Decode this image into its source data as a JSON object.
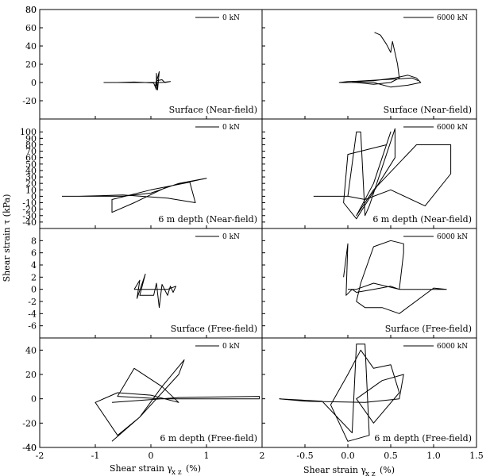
{
  "figure": {
    "ylabel": "Shear strain τ (kPa)",
    "xlabel_left": "Shear strain γ",
    "xlabel_left_sub": "x z",
    "xlabel_left_unit": "(%)",
    "xlabel_right": "Shear strain γ",
    "xlabel_right_sub": "x z",
    "xlabel_right_unit": "(%)"
  },
  "chart_data": [
    {
      "type": "line",
      "panel": "row1-left",
      "legend": "0 kN",
      "annotation": "Surface (Near-field)",
      "xlim": [
        -2,
        2
      ],
      "ylim": [
        -40,
        80
      ],
      "yticks": [
        -20,
        0,
        20,
        40,
        60,
        80
      ],
      "series": [
        {
          "x": [
            -0.85,
            -0.6,
            -0.3,
            -0.1,
            0.05,
            0.1,
            0.1,
            0.12,
            0.15,
            0.08,
            0.1,
            0.2,
            0.25,
            0.35,
            0.2,
            0.0,
            -0.3,
            -0.85
          ],
          "y": [
            0,
            0,
            0.5,
            0,
            -0.5,
            -8,
            10,
            -8,
            12,
            -4,
            2,
            3,
            0,
            1,
            0,
            0,
            0,
            0
          ]
        }
      ]
    },
    {
      "type": "line",
      "panel": "row1-right",
      "legend": "6000 kN",
      "annotation": "Surface (Near-field)",
      "xlim": [
        -1,
        1.5
      ],
      "ylim": [
        -40,
        80
      ],
      "yticks": [
        -20,
        0,
        20,
        40,
        60,
        80
      ],
      "series": [
        {
          "x": [
            0.31,
            0.38,
            0.45,
            0.5,
            0.52,
            0.58,
            0.6,
            0.5,
            0.3,
            0.1,
            -0.1,
            0.0,
            0.3,
            0.55,
            0.7,
            0.8,
            0.85,
            0.7,
            0.5,
            0.3,
            0.05,
            0.4,
            0.6,
            0.75,
            0.82
          ],
          "y": [
            55,
            52,
            42,
            33,
            45,
            20,
            5,
            0,
            -2,
            0,
            0,
            1,
            2,
            5,
            8,
            5,
            0,
            -3,
            -5,
            0,
            1,
            3,
            4,
            5,
            2
          ]
        }
      ]
    },
    {
      "type": "line",
      "panel": "row2-left",
      "legend": "0 kN",
      "annotation": "6 m depth (Near-field)",
      "xlim": [
        -2,
        2
      ],
      "ylim": [
        -50,
        120
      ],
      "yticks": [
        -40,
        -30,
        -20,
        -10,
        0,
        10,
        20,
        30,
        40,
        50,
        60,
        70,
        80,
        90,
        100
      ],
      "series": [
        {
          "x": [
            -1.6,
            -0.5,
            0.0,
            0.5,
            1.0,
            0.3,
            -0.3,
            -0.7,
            -0.7,
            0.0,
            0.7,
            0.8,
            0.3,
            -0.5,
            -1.3,
            -1.6
          ],
          "y": [
            0,
            0,
            5,
            20,
            28,
            15,
            -10,
            -25,
            -5,
            10,
            22,
            -10,
            -3,
            2,
            0,
            0
          ]
        }
      ]
    },
    {
      "type": "line",
      "panel": "row2-right",
      "legend": "6000 kN",
      "annotation": "6 m depth (Near-field)",
      "xlim": [
        -1,
        1.5
      ],
      "ylim": [
        -50,
        120
      ],
      "yticks": [
        -40,
        -30,
        -20,
        -10,
        0,
        10,
        20,
        30,
        40,
        50,
        60,
        70,
        80,
        90,
        100
      ],
      "series": [
        {
          "x": [
            -0.4,
            0.0,
            0.1,
            0.15,
            0.2,
            0.25,
            0.55,
            0.55,
            0.1,
            -0.05,
            0.0,
            0.45,
            0.5,
            0.3,
            0.1,
            0.3,
            0.8,
            1.2,
            1.2,
            0.9,
            0.5,
            0.2,
            0.0,
            -0.4
          ],
          "y": [
            0,
            0,
            100,
            100,
            -30,
            -15,
            105,
            60,
            -35,
            -10,
            65,
            80,
            100,
            20,
            -30,
            10,
            80,
            80,
            35,
            -15,
            10,
            -5,
            0,
            0
          ]
        }
      ]
    },
    {
      "type": "line",
      "panel": "row3-left",
      "legend": "0 kN",
      "annotation": "Surface (Free-field)",
      "xlim": [
        -2,
        2
      ],
      "ylim": [
        -8,
        10
      ],
      "yticks": [
        -6,
        -4,
        -2,
        0,
        2,
        4,
        6,
        8
      ],
      "series": [
        {
          "x": [
            -0.3,
            -0.2,
            -0.25,
            -0.1,
            -0.2,
            0.05,
            0.1,
            0.15,
            0.2,
            0.3,
            0.35,
            0.4,
            0.45,
            0.3,
            0.2,
            -0.1,
            -0.3
          ],
          "y": [
            0,
            1.5,
            -1.5,
            2.5,
            -1,
            -1,
            1,
            -3,
            0.8,
            -1,
            0.5,
            -0.5,
            0.5,
            0,
            0,
            0,
            0
          ]
        }
      ]
    },
    {
      "type": "line",
      "panel": "row3-right",
      "legend": "6000 kN",
      "annotation": "Surface (Free-field)",
      "xlim": [
        -1,
        1.5
      ],
      "ylim": [
        -8,
        10
      ],
      "yticks": [
        -6,
        -4,
        -2,
        0,
        2,
        4,
        6,
        8
      ],
      "series": [
        {
          "x": [
            -0.05,
            0.0,
            -0.02,
            0.05,
            0.1,
            0.3,
            0.5,
            0.6,
            0.65,
            0.65,
            0.5,
            0.3,
            0.15,
            0.1,
            0.2,
            0.4,
            0.6,
            1.0,
            1.15,
            0.6,
            0.3,
            0.1,
            0.0
          ],
          "y": [
            2,
            7.5,
            -1,
            0,
            -0.5,
            0,
            0.5,
            0,
            6,
            7.5,
            8,
            7,
            1,
            -2,
            -3,
            -3,
            -4,
            0.2,
            0,
            0,
            1,
            0,
            0
          ]
        }
      ]
    },
    {
      "type": "line",
      "panel": "row4-left",
      "legend": "0 kN",
      "annotation": "6 m depth (Free-field)",
      "xlim": [
        -2,
        2
      ],
      "ylim": [
        -40,
        50
      ],
      "yticks": [
        -40,
        -20,
        0,
        20,
        40
      ],
      "series": [
        {
          "x": [
            -0.7,
            -0.2,
            0.2,
            0.6,
            0.5,
            -0.2,
            -0.6,
            -1.0,
            -0.6,
            0.0,
            0.5,
            0.2,
            -0.3,
            -0.6,
            0.2,
            1.95,
            1.95,
            0.5,
            -0.7
          ],
          "y": [
            -35,
            -15,
            10,
            32,
            20,
            -15,
            -30,
            -3,
            5,
            3,
            -3,
            10,
            25,
            2,
            0,
            0,
            2,
            1,
            -3
          ]
        }
      ]
    },
    {
      "type": "line",
      "panel": "row4-right",
      "legend": "6000 kN",
      "annotation": "6 m depth (Free-field)",
      "xlim": [
        -1,
        1.5
      ],
      "ylim": [
        -40,
        50
      ],
      "yticks": [
        -40,
        -20,
        0,
        20,
        40
      ],
      "series": [
        {
          "x": [
            -0.8,
            -0.3,
            0.05,
            0.1,
            0.2,
            0.25,
            0.0,
            -0.2,
            0.0,
            0.15,
            0.3,
            0.5,
            0.6,
            0.3,
            0.1,
            0.4,
            0.65,
            0.6,
            0.2,
            -0.5,
            -0.8
          ],
          "y": [
            0,
            -2,
            -28,
            45,
            45,
            -30,
            -35,
            -5,
            20,
            40,
            25,
            28,
            5,
            -20,
            0,
            15,
            20,
            0,
            -3,
            -2,
            0
          ]
        }
      ]
    }
  ]
}
